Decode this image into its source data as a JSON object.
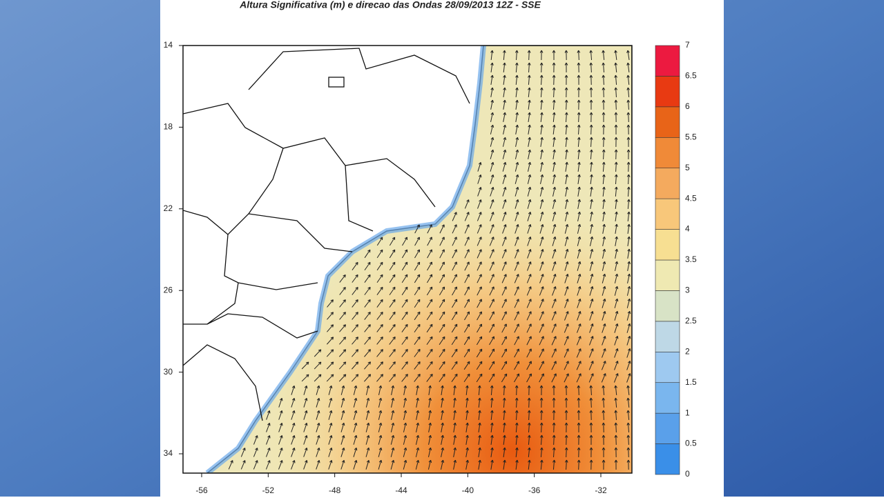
{
  "header": {
    "title": "Altura Significativa (m) e direcao das Ondas 28/09/2013 12Z - SSE"
  },
  "map": {
    "yticks": [
      14,
      18,
      22,
      26,
      30,
      34
    ],
    "xticks": [
      -56,
      -52,
      -48,
      -44,
      -40,
      -36,
      -32
    ]
  },
  "colorbar": {
    "labels": [
      0,
      0.5,
      1,
      1.5,
      2,
      2.5,
      3,
      3.5,
      4,
      4.5,
      5,
      5.5,
      6,
      6.5,
      7
    ]
  }
}
